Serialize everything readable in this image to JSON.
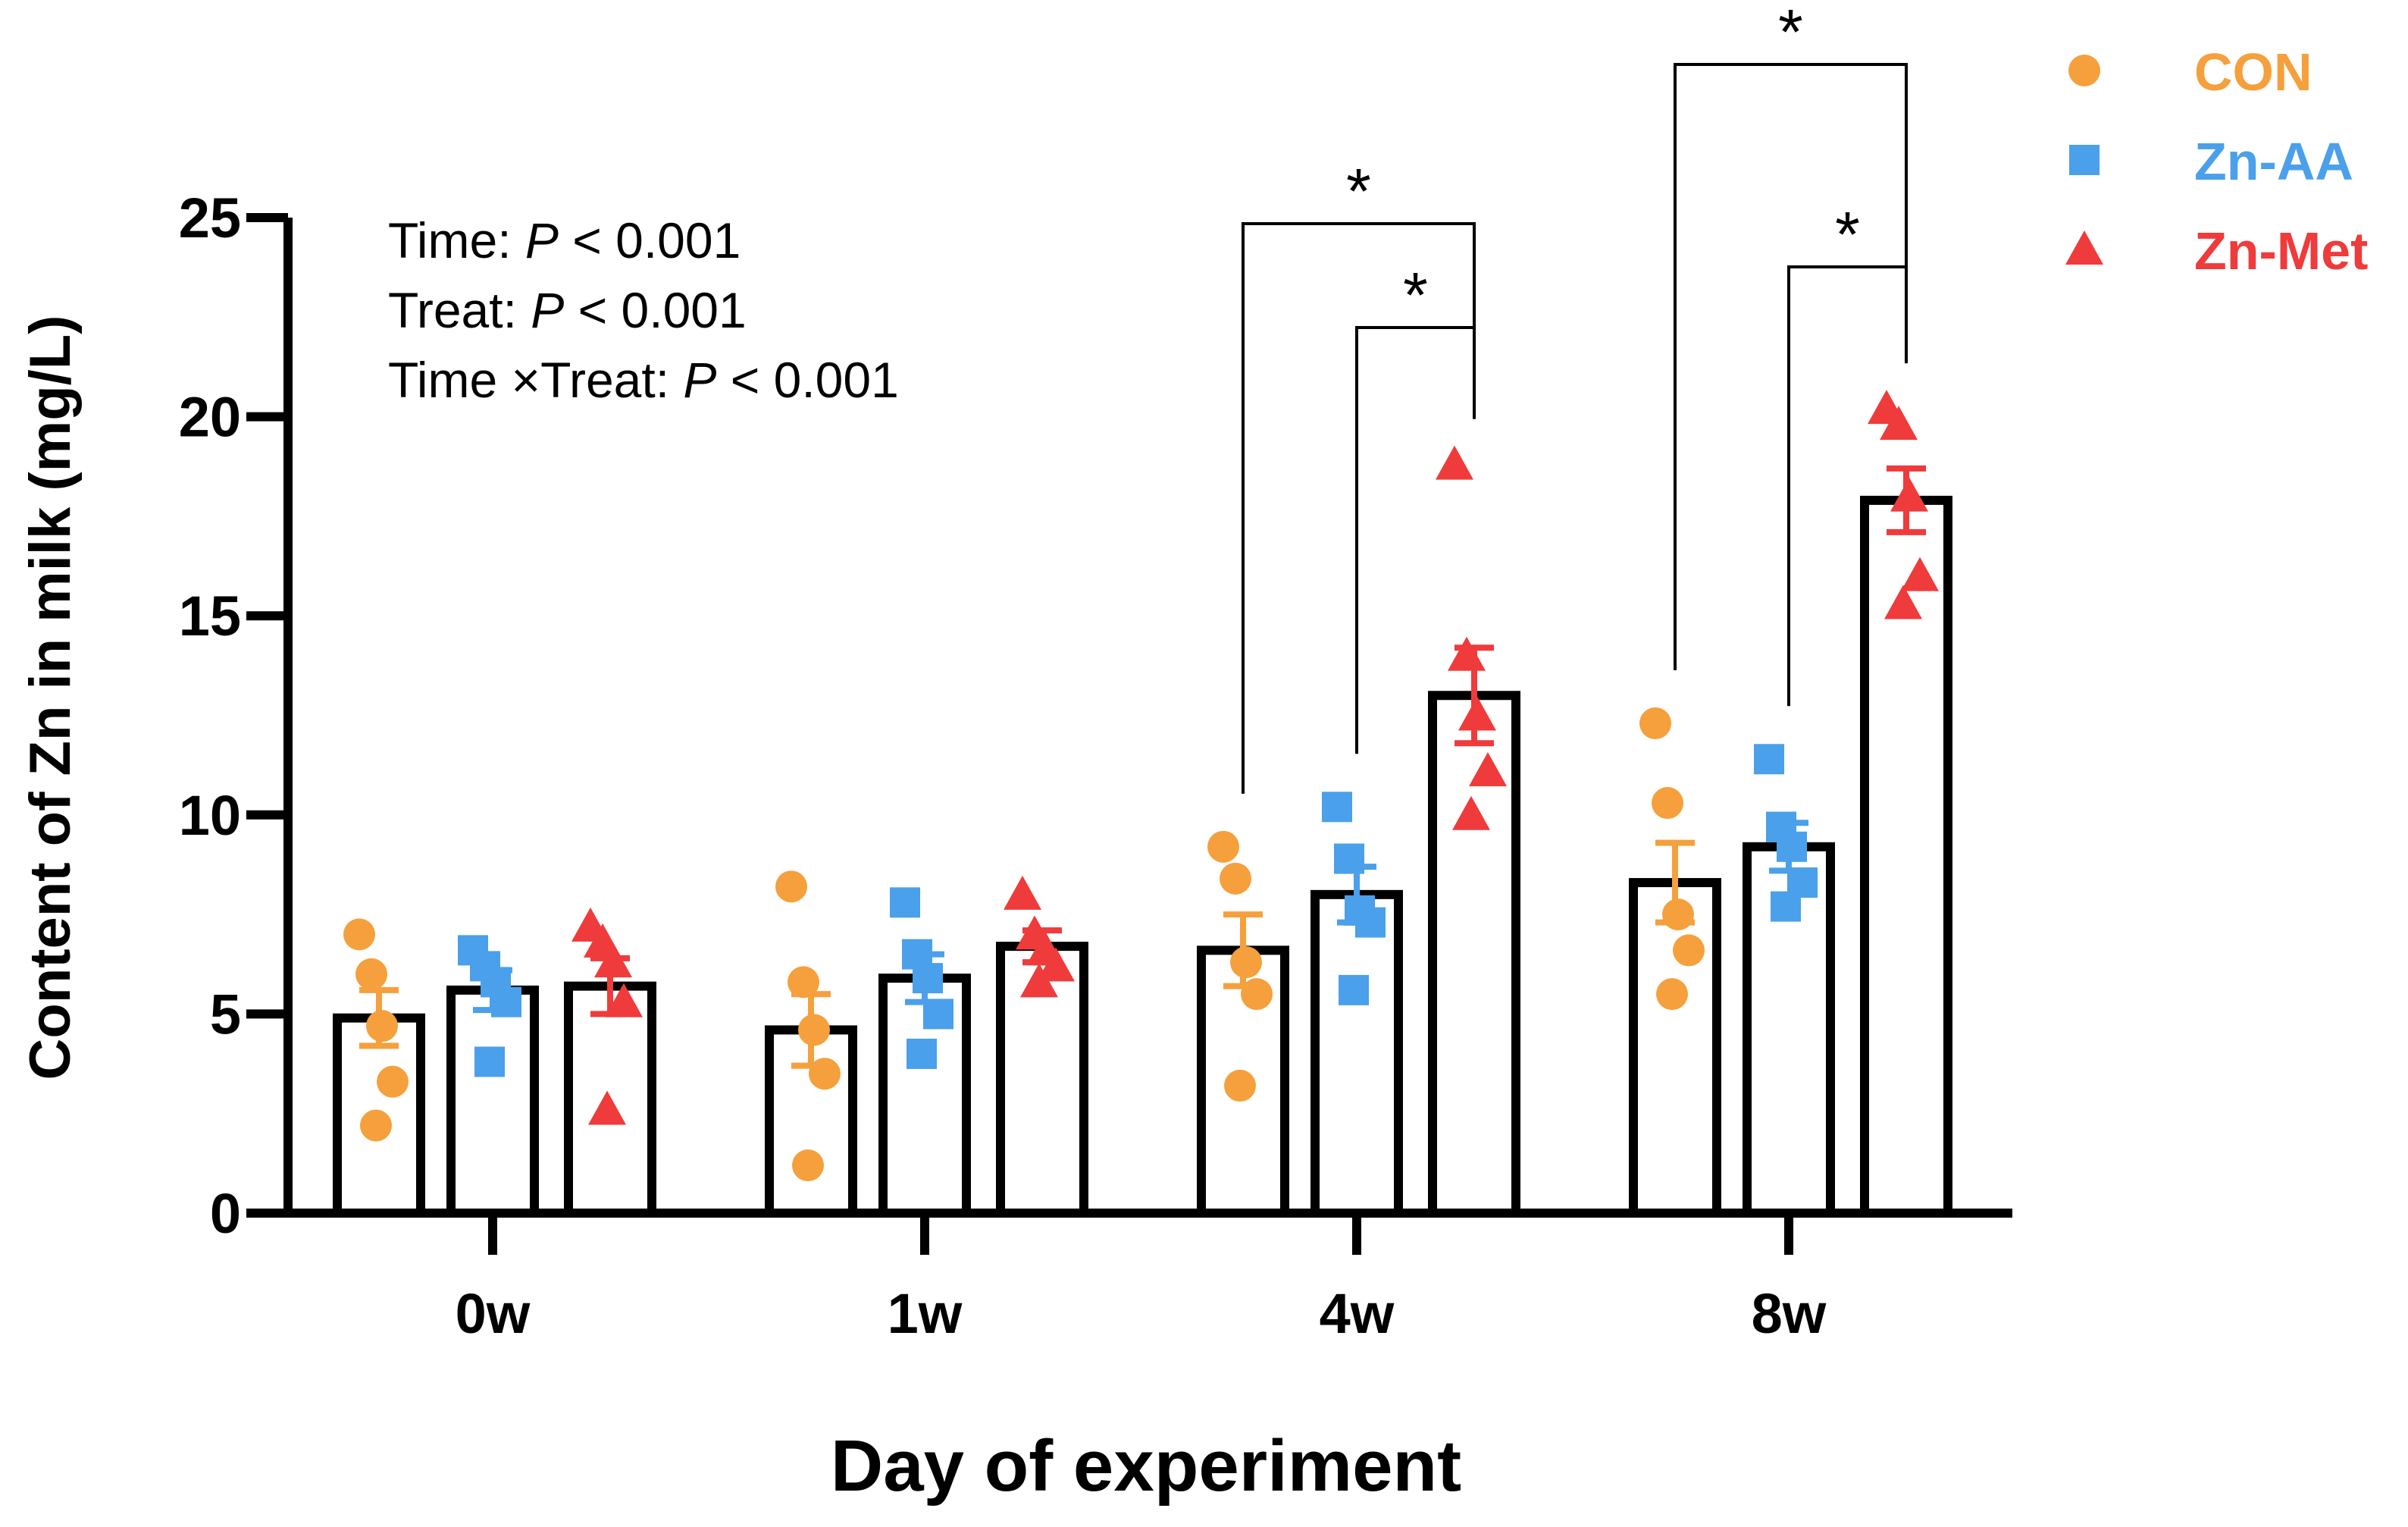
{
  "chart_data": {
    "type": "bar",
    "title": "",
    "xlabel": "Day of experiment",
    "ylabel": "Content of Zn in milk (mg/L)",
    "ylim": [
      0,
      25
    ],
    "yticks": [
      "0",
      "5",
      "10",
      "15",
      "20",
      "25"
    ],
    "categories": [
      "0w",
      "1w",
      "4w",
      "8w"
    ],
    "series": [
      {
        "name": "CON",
        "color": "#F5A03C",
        "marker": "circle",
        "values": [
          4.9,
          4.6,
          6.6,
          8.3
        ],
        "sem": [
          0.7,
          0.9,
          0.9,
          1.0
        ],
        "points": [
          [
            7.0,
            6.0,
            4.7,
            3.3,
            2.2
          ],
          [
            8.2,
            5.8,
            4.6,
            3.5,
            1.2
          ],
          [
            9.2,
            8.4,
            6.3,
            5.5,
            3.2
          ],
          [
            12.3,
            10.3,
            7.5,
            6.6,
            5.5
          ]
        ]
      },
      {
        "name": "Zn-AA",
        "color": "#4AA0EA",
        "marker": "square",
        "values": [
          5.6,
          5.9,
          8.0,
          9.2
        ],
        "sem": [
          0.5,
          0.6,
          0.7,
          0.6
        ],
        "points": [
          [
            6.6,
            6.2,
            5.8,
            5.3,
            3.8
          ],
          [
            7.8,
            6.5,
            5.9,
            5.0,
            4.0
          ],
          [
            10.2,
            8.9,
            7.6,
            7.3,
            5.6
          ],
          [
            11.4,
            9.7,
            9.2,
            8.3,
            7.7
          ]
        ]
      },
      {
        "name": "Zn-Met",
        "color": "#EF3B3B",
        "marker": "triangle",
        "values": [
          5.7,
          6.7,
          13.0,
          17.9
        ],
        "sem": [
          0.7,
          0.4,
          1.2,
          0.8
        ],
        "points": [
          [
            7.2,
            6.8,
            6.3,
            5.3,
            2.6
          ],
          [
            8.0,
            7.0,
            6.6,
            6.2,
            5.8
          ],
          [
            18.8,
            14.0,
            12.5,
            11.1,
            10.0
          ],
          [
            20.2,
            19.8,
            18.0,
            16.0,
            15.3
          ]
        ]
      }
    ],
    "annotations": {
      "stats": [
        {
          "label": "Time: ",
          "p": "P",
          "rest": " < 0.001"
        },
        {
          "label": "Treat: ",
          "p": "P",
          "rest": " < 0.001"
        },
        {
          "label": "Time ×Treat: ",
          "p": "P",
          "rest": " < 0.001"
        }
      ],
      "significance": [
        {
          "category": "4w",
          "from": "CON",
          "to": "Zn-Met",
          "mark": "*"
        },
        {
          "category": "4w",
          "from": "Zn-AA",
          "to": "Zn-Met",
          "mark": "*"
        },
        {
          "category": "8w",
          "from": "CON",
          "to": "Zn-Met",
          "mark": "*"
        },
        {
          "category": "8w",
          "from": "Zn-AA",
          "to": "Zn-Met",
          "mark": "*"
        }
      ]
    },
    "legend_position": "top-right",
    "grid": false
  }
}
